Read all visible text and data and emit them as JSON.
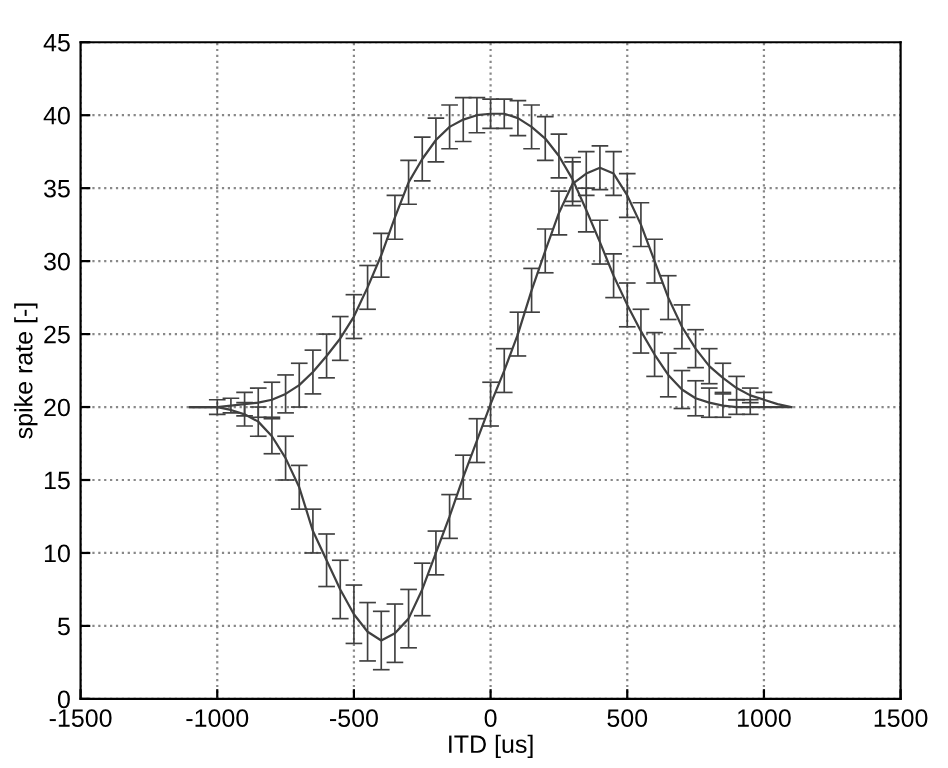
{
  "chart_data": {
    "type": "line",
    "xlabel": "ITD [us]",
    "ylabel": "spike rate [-]",
    "x": [
      -1100,
      -1050,
      -1000,
      -950,
      -900,
      -850,
      -800,
      -750,
      -700,
      -650,
      -600,
      -550,
      -500,
      -450,
      -400,
      -350,
      -300,
      -250,
      -200,
      -150,
      -100,
      -50,
      0,
      50,
      100,
      150,
      200,
      250,
      300,
      350,
      400,
      450,
      500,
      550,
      600,
      650,
      700,
      750,
      800,
      850,
      900,
      950,
      1000,
      1050,
      1100
    ],
    "series": [
      {
        "color": "#404040",
        "values": [
          20,
          20,
          20,
          20.1,
          20.2,
          20.3,
          20.5,
          20.9,
          21.5,
          22.4,
          23.5,
          24.7,
          26.2,
          28.2,
          30.4,
          33,
          35.4,
          37,
          38.3,
          39.2,
          39.7,
          40,
          40.1,
          40.1,
          39.8,
          39.2,
          38.4,
          37.2,
          35.6,
          33.5,
          31.3,
          29,
          27,
          25.2,
          23.6,
          22.2,
          21.2,
          20.6,
          20.3,
          20.1,
          20,
          20,
          20,
          20,
          20
        ],
        "errors": [
          null,
          null,
          0.5,
          0.5,
          0.8,
          1,
          1.2,
          1.3,
          1.5,
          1.5,
          1.5,
          1.5,
          1.5,
          1.5,
          1.5,
          1.5,
          1.5,
          1.5,
          1.5,
          1.5,
          1.5,
          1.2,
          1,
          1,
          1.2,
          1.5,
          1.5,
          1.5,
          1.5,
          1.5,
          1.5,
          1.5,
          1.5,
          1.5,
          1.5,
          1.5,
          1.3,
          1.2,
          1,
          0.8,
          0.5,
          0.5,
          null,
          null,
          null
        ]
      },
      {
        "color": "#404040",
        "values": [
          20,
          20,
          20,
          19.8,
          19.5,
          19,
          18,
          16.5,
          14.5,
          11.5,
          9.5,
          7.5,
          5.8,
          4.6,
          4,
          4.5,
          5.5,
          7.5,
          10,
          12.5,
          15.2,
          17.7,
          20.2,
          22.5,
          25,
          28,
          30.7,
          33.3,
          35.3,
          36,
          36.4,
          36,
          34.5,
          32.5,
          30,
          27.5,
          25.5,
          24,
          22.8,
          22,
          21.3,
          20.8,
          20.5,
          20.2,
          20
        ],
        "errors": [
          null,
          null,
          null,
          null,
          0.8,
          1,
          1.2,
          1.5,
          1.5,
          1.5,
          1.8,
          2,
          2,
          2,
          2,
          2,
          2,
          1.8,
          1.5,
          1.5,
          1.5,
          1.5,
          1.5,
          1.5,
          1.5,
          1.5,
          1.5,
          1.5,
          1.5,
          1.5,
          1.5,
          1.5,
          1.5,
          1.5,
          1.5,
          1.5,
          1.5,
          1.3,
          1.2,
          1,
          0.8,
          0.5,
          0.5,
          null,
          null
        ]
      }
    ],
    "xlim": [
      -1500,
      1500
    ],
    "xticks": [
      -1500,
      -1000,
      -500,
      0,
      500,
      1000,
      1500
    ],
    "ylim": [
      0,
      45
    ],
    "yticks": [
      0,
      5,
      10,
      15,
      20,
      25,
      30,
      35,
      40,
      45
    ],
    "grid": true,
    "marker": "none",
    "line_style": "solid"
  }
}
